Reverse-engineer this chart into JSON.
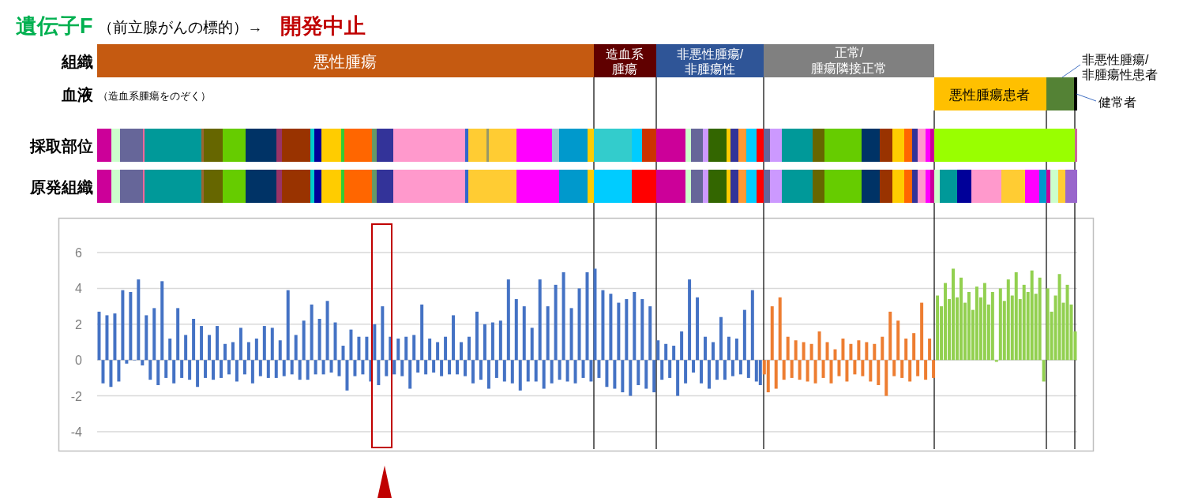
{
  "chart_data": {
    "type": "bar",
    "title": "遺伝子F",
    "subtitle": "（前立腺がんの標的）→",
    "annotations": [
      "開発中止",
      "組織",
      "血液",
      "（造血系腫瘍をのぞく）",
      "採取部位",
      "原発組織",
      "悪性腫瘍",
      "造血系",
      "腫瘍",
      "非悪性腫瘍/",
      "非腫瘍性",
      "正常/",
      "腫瘍隣接正常",
      "悪性腫瘍患者",
      "非悪性腫瘍/",
      "非腫瘍性患者",
      "健常者"
    ],
    "categories": [
      null,
      null,
      null,
      null,
      null,
      null,
      null,
      null,
      null,
      null,
      null,
      null,
      null,
      null,
      null,
      null,
      null,
      null,
      null,
      null,
      null,
      null,
      null,
      null,
      null,
      null,
      null,
      null,
      null,
      null,
      null,
      null,
      null,
      null,
      null,
      null,
      null,
      null,
      null,
      null,
      null,
      null,
      null,
      null,
      null,
      null,
      null,
      null,
      null,
      null,
      null,
      null,
      null,
      null,
      null,
      null,
      null,
      null,
      null,
      null,
      null,
      null,
      null,
      null,
      null,
      null,
      null,
      null,
      null,
      null,
      null,
      null,
      null,
      null,
      null,
      null,
      null,
      null,
      null,
      null,
      null,
      null,
      null,
      null,
      null,
      null,
      null,
      null,
      null,
      null,
      null,
      null,
      null,
      null,
      null,
      null,
      null,
      null,
      null,
      null,
      null,
      null,
      null,
      null,
      null,
      null,
      null,
      null,
      null,
      null,
      null,
      null,
      null,
      null,
      null,
      null,
      null,
      null,
      null,
      null,
      null,
      null,
      null,
      null,
      null,
      null,
      null,
      null,
      null,
      null,
      null,
      null,
      null,
      null,
      null,
      null,
      null,
      null,
      null,
      null,
      null,
      null,
      null,
      null,
      null,
      null,
      null,
      null,
      null,
      null,
      null,
      null,
      null,
      null,
      null,
      null,
      null,
      null,
      null,
      null,
      null,
      null,
      null,
      null,
      null,
      null,
      null,
      null,
      null,
      null,
      null,
      null,
      null,
      null,
      null,
      null,
      null,
      null,
      null,
      null,
      null,
      null,
      null,
      null,
      null,
      null,
      null,
      null,
      null,
      null,
      null,
      null,
      null,
      null,
      null,
      null,
      null,
      null,
      null,
      null,
      null,
      null,
      null,
      null,
      null,
      null,
      null,
      null,
      null,
      null,
      null,
      null,
      null,
      null,
      null,
      null,
      null,
      null,
      null,
      null,
      null,
      null,
      null,
      null,
      null,
      null,
      null,
      null,
      null,
      null,
      null,
      null,
      null,
      null,
      null,
      null,
      null,
      null,
      null,
      null,
      null,
      null,
      null,
      null,
      null,
      null,
      null,
      null,
      null
    ],
    "series": [
      {
        "color": "#4472c4",
        "values": [
          2.7,
          -1.3,
          2.5,
          -1.5,
          2.6,
          -1.2,
          3.9,
          -0.2,
          3.8,
          0,
          4.5,
          -0.3,
          2.5,
          -1.1,
          2.9,
          -1.4,
          4.4,
          -1.0,
          1.2,
          -1.3,
          2.9,
          -1.0,
          1.4,
          -1.1,
          2.3,
          -1.5,
          1.9,
          -1.0,
          1.4,
          -1.1,
          1.9,
          -1.0,
          0.9,
          -0.8,
          1.0,
          -1.2,
          1.8,
          -0.8,
          1.0,
          -1.3,
          1.2,
          -0.9,
          1.9,
          -1.0,
          1.8,
          -1.0,
          1.1,
          -0.9,
          3.9,
          -0.8,
          1.4,
          -1.1,
          2.2,
          -1.1,
          3.1,
          -0.8,
          2.3,
          -0.8,
          3.3,
          -0.7,
          2.1,
          -0.9,
          0.8,
          -1.7,
          1.7,
          -0.9,
          1.3,
          -0.8,
          1.3,
          -1.2,
          2.0,
          -1.4,
          3.0,
          -0.9,
          1.3,
          -0.8,
          1.2,
          -0.9,
          1.3,
          -1.6,
          1.4,
          -0.7,
          3.1,
          -0.8,
          1.2,
          -0.7,
          1.0,
          -0.9,
          1.3,
          -0.8,
          2.5,
          -0.8,
          1.0,
          -0.9,
          1.3,
          -1.3,
          2.7,
          -1.1,
          2.0,
          -1.6,
          2.1,
          -1.0,
          2.2,
          -1.2,
          4.5,
          -1.3,
          3.4,
          -1.7,
          3.0,
          -1.2,
          1.8,
          -1.2,
          4.5,
          -1.6,
          3.0,
          -1.3,
          4.2,
          -1.1,
          4.9,
          -1.2,
          2.9,
          -1.3,
          4.0,
          -1.0,
          4.9,
          -1.2,
          5.1,
          -1.0,
          3.9,
          -1.5,
          3.7,
          -1.6,
          3.2,
          -1.8,
          3.4,
          -2.0,
          3.8,
          -1.4,
          3.4,
          -1.6,
          3.0,
          -1.8,
          1.1,
          -1.1,
          0.9,
          -1.0,
          0.8,
          -2.0,
          1.6,
          -1.3,
          4.5,
          -0.7,
          3.5,
          -1.3,
          1.3,
          -1.6,
          1.0,
          -1.1,
          2.4,
          -1.1,
          1.3,
          -0.9,
          1.2,
          -0.8,
          2.8,
          -1.0,
          3.9,
          -1.2,
          -1.4,
          null,
          null,
          null,
          null,
          null,
          null,
          null,
          null,
          null,
          null,
          null,
          null,
          null,
          null,
          null,
          null,
          null,
          null,
          null,
          null,
          null,
          null,
          null,
          null,
          null,
          null,
          null,
          null,
          null,
          null,
          null,
          null,
          null,
          null,
          null,
          null,
          null,
          null,
          null,
          null,
          null,
          null,
          null,
          null,
          null,
          null,
          null,
          null,
          null,
          null,
          null,
          null,
          null,
          null,
          null,
          null,
          null,
          null,
          null,
          null,
          null,
          null,
          null,
          null,
          null,
          null,
          null,
          null,
          null,
          null,
          null,
          null,
          null,
          null,
          null,
          null,
          null,
          null,
          null,
          null
        ]
      },
      {
        "color": "#ed7d31",
        "values": [
          null,
          null,
          null,
          null,
          null,
          null,
          null,
          null,
          null,
          null,
          null,
          null,
          null,
          null,
          null,
          null,
          null,
          null,
          null,
          null,
          null,
          null,
          null,
          null,
          null,
          null,
          null,
          null,
          null,
          null,
          null,
          null,
          null,
          null,
          null,
          null,
          null,
          null,
          null,
          null,
          null,
          null,
          null,
          null,
          null,
          null,
          null,
          null,
          null,
          null,
          null,
          null,
          null,
          null,
          null,
          null,
          null,
          null,
          null,
          null,
          null,
          null,
          null,
          null,
          null,
          null,
          null,
          null,
          null,
          null,
          null,
          null,
          null,
          null,
          null,
          null,
          null,
          null,
          null,
          null,
          null,
          null,
          null,
          null,
          null,
          null,
          null,
          null,
          null,
          null,
          null,
          null,
          null,
          null,
          null,
          null,
          null,
          null,
          null,
          null,
          null,
          null,
          null,
          null,
          null,
          null,
          null,
          null,
          null,
          null,
          null,
          null,
          null,
          null,
          null,
          null,
          null,
          null,
          null,
          null,
          null,
          null,
          null,
          null,
          null,
          null,
          null,
          null,
          null,
          null,
          null,
          null,
          null,
          null,
          null,
          null,
          null,
          null,
          null,
          null,
          null,
          null,
          null,
          null,
          null,
          null,
          null,
          null,
          null,
          null,
          null,
          null,
          null,
          null,
          null,
          null,
          null,
          null,
          null,
          null,
          null,
          null,
          null,
          null,
          null,
          null,
          null,
          null,
          null,
          -0.8,
          -1.8,
          3.0,
          -1.6,
          3.5,
          -1.1,
          1.3,
          -1.0,
          1.1,
          -1.1,
          1.0,
          -1.2,
          0.9,
          -1.3,
          1.6,
          -1.0,
          1.0,
          -1.3,
          0.6,
          -0.9,
          1.2,
          -1.2,
          0.9,
          -0.8,
          1.1,
          -0.9,
          1.0,
          -1.2,
          0.9,
          -1.4,
          1.3,
          -2.0,
          2.7,
          -0.9,
          2.2,
          -1.0,
          1.2,
          -1.2,
          1.5,
          -0.9,
          3.2,
          -1.1,
          1.2,
          -1.0,
          null,
          null,
          null,
          null,
          null,
          null,
          null,
          null,
          null,
          null,
          null,
          null,
          null,
          null,
          null,
          null,
          null,
          null,
          null,
          null,
          null,
          null,
          null,
          null,
          null,
          null,
          null,
          null,
          null,
          null,
          null,
          null,
          null,
          null,
          null,
          null
        ]
      },
      {
        "color": "#92d050",
        "values": [
          null,
          null,
          null,
          null,
          null,
          null,
          null,
          null,
          null,
          null,
          null,
          null,
          null,
          null,
          null,
          null,
          null,
          null,
          null,
          null,
          null,
          null,
          null,
          null,
          null,
          null,
          null,
          null,
          null,
          null,
          null,
          null,
          null,
          null,
          null,
          null,
          null,
          null,
          null,
          null,
          null,
          null,
          null,
          null,
          null,
          null,
          null,
          null,
          null,
          null,
          null,
          null,
          null,
          null,
          null,
          null,
          null,
          null,
          null,
          null,
          null,
          null,
          null,
          null,
          null,
          null,
          null,
          null,
          null,
          null,
          null,
          null,
          null,
          null,
          null,
          null,
          null,
          null,
          null,
          null,
          null,
          null,
          null,
          null,
          null,
          null,
          null,
          null,
          null,
          null,
          null,
          null,
          null,
          null,
          null,
          null,
          null,
          null,
          null,
          null,
          null,
          null,
          null,
          null,
          null,
          null,
          null,
          null,
          null,
          null,
          null,
          null,
          null,
          null,
          null,
          null,
          null,
          null,
          null,
          null,
          null,
          null,
          null,
          null,
          null,
          null,
          null,
          null,
          null,
          null,
          null,
          null,
          null,
          null,
          null,
          null,
          null,
          null,
          null,
          null,
          null,
          null,
          null,
          null,
          null,
          null,
          null,
          null,
          null,
          null,
          null,
          null,
          null,
          null,
          null,
          null,
          null,
          null,
          null,
          null,
          null,
          null,
          null,
          null,
          null,
          null,
          null,
          null,
          null,
          null,
          null,
          null,
          null,
          null,
          null,
          null,
          null,
          null,
          null,
          null,
          null,
          null,
          null,
          null,
          null,
          null,
          null,
          null,
          null,
          null,
          null,
          null,
          null,
          null,
          null,
          null,
          null,
          null,
          null,
          null,
          null,
          null,
          null,
          null,
          null,
          null,
          null,
          null,
          null,
          null,
          null,
          null,
          null,
          3.6,
          3.0,
          4.3,
          3.4,
          5.1,
          3.5,
          4.6,
          3.2,
          3.8,
          2.8,
          4.1,
          3.5,
          4.3,
          3.1,
          3.8,
          -0.1,
          4.0,
          3.3,
          4.5,
          3.6,
          4.9,
          3.4,
          4.2,
          3.8,
          5.0,
          3.7,
          4.6,
          -1.2,
          4.0,
          2.7,
          3.6,
          4.8,
          3.2,
          4.2,
          3.1,
          1.6
        ]
      }
    ],
    "ylim": [
      -4,
      6
    ],
    "yticks": [
      -4,
      -2,
      0,
      2,
      4,
      6
    ],
    "grid": "y",
    "tick_labels": "y"
  }
}
